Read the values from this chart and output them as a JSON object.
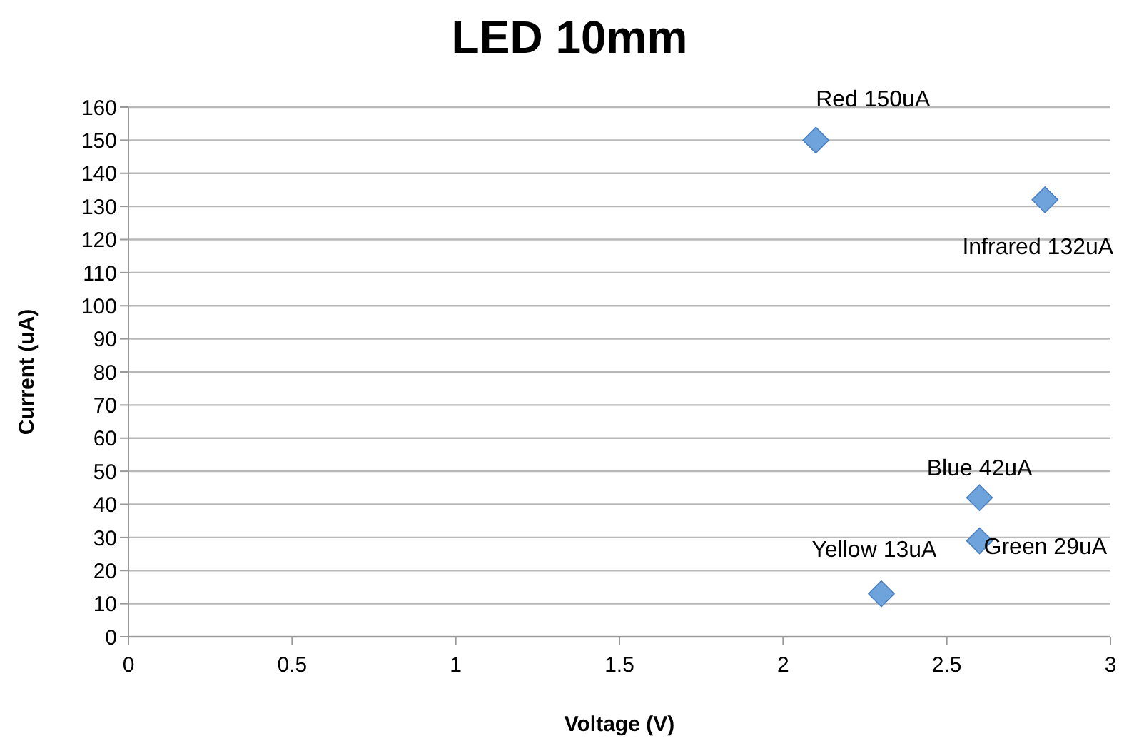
{
  "chart_data": {
    "type": "scatter",
    "title": "LED 10mm",
    "xlabel": "Voltage (V)",
    "ylabel": "Current (uA)",
    "x": [
      2.1,
      2.8,
      2.6,
      2.6,
      2.3
    ],
    "values": [
      150,
      132,
      42,
      29,
      13
    ],
    "value_labels": [
      "Red 150uA",
      "Infrared 132uA",
      "Blue 42uA",
      "Green 29uA",
      "Yellow 13uA"
    ],
    "color": "#6fa3dc",
    "marker": "diamond",
    "xlim": [
      0,
      3
    ],
    "xticks": [
      0,
      {
        "value": 0.5,
        "label": "0.5"
      },
      1,
      {
        "value": 1.5,
        "label": "1.5"
      },
      2,
      {
        "value": 2.5,
        "label": "2.5"
      },
      3
    ],
    "ylim": [
      0,
      160
    ],
    "yticks": [
      0,
      10,
      20,
      30,
      40,
      50,
      60,
      70,
      80,
      90,
      100,
      110,
      120,
      130,
      140,
      150,
      160
    ],
    "grid": "y",
    "legend": false
  }
}
